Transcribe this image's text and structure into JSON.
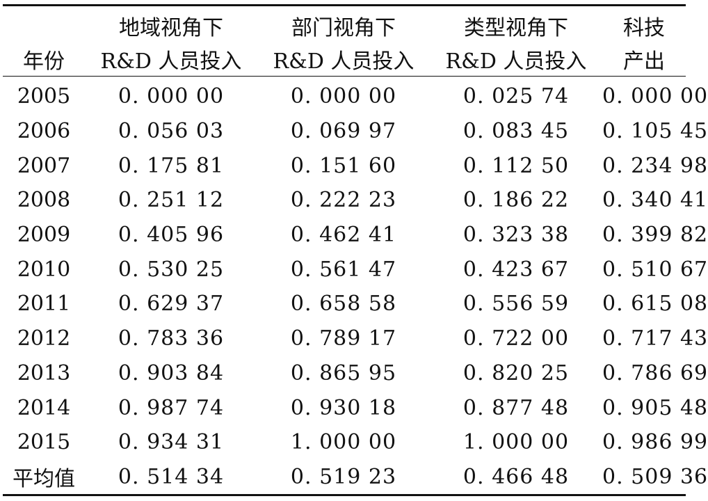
{
  "table": {
    "header": {
      "year": "年份",
      "col1_line1": "地域视角下",
      "col1_line2": "R&D 人员投入",
      "col2_line1": "部门视角下",
      "col2_line2": "R&D 人员投入",
      "col3_line1": "类型视角下",
      "col3_line2": "R&D 人员投入",
      "col4_line1": "科技",
      "col4_line2": "产出"
    },
    "rows": [
      {
        "label": "2005",
        "v1": "0. 000 00",
        "v2": "0. 000 00",
        "v3": "0. 025 74",
        "v4": "0. 000 00"
      },
      {
        "label": "2006",
        "v1": "0. 056 03",
        "v2": "0. 069 97",
        "v3": "0. 083 45",
        "v4": "0. 105 45"
      },
      {
        "label": "2007",
        "v1": "0. 175 81",
        "v2": "0. 151 60",
        "v3": "0. 112 50",
        "v4": "0. 234 98"
      },
      {
        "label": "2008",
        "v1": "0. 251 12",
        "v2": "0. 222 23",
        "v3": "0. 186 22",
        "v4": "0. 340 41"
      },
      {
        "label": "2009",
        "v1": "0. 405 96",
        "v2": "0. 462 41",
        "v3": "0. 323 38",
        "v4": "0. 399 82"
      },
      {
        "label": "2010",
        "v1": "0. 530 25",
        "v2": "0. 561 47",
        "v3": "0. 423 67",
        "v4": "0. 510 67"
      },
      {
        "label": "2011",
        "v1": "0. 629 37",
        "v2": "0. 658 58",
        "v3": "0. 556 59",
        "v4": "0. 615 08"
      },
      {
        "label": "2012",
        "v1": "0. 783 36",
        "v2": "0. 789 17",
        "v3": "0. 722 00",
        "v4": "0. 717 43"
      },
      {
        "label": "2013",
        "v1": "0. 903 84",
        "v2": "0. 865 95",
        "v3": "0. 820 25",
        "v4": "0. 786 69"
      },
      {
        "label": "2014",
        "v1": "0. 987 74",
        "v2": "0. 930 18",
        "v3": "0. 877 48",
        "v4": "0. 905 48"
      },
      {
        "label": "2015",
        "v1": "0. 934 31",
        "v2": "1. 000 00",
        "v3": "1. 000 00",
        "v4": "0. 986 99"
      },
      {
        "label": "平均值",
        "v1": "0. 514 34",
        "v2": "0. 519 23",
        "v3": "0. 466 48",
        "v4": "0. 509 36"
      }
    ]
  }
}
